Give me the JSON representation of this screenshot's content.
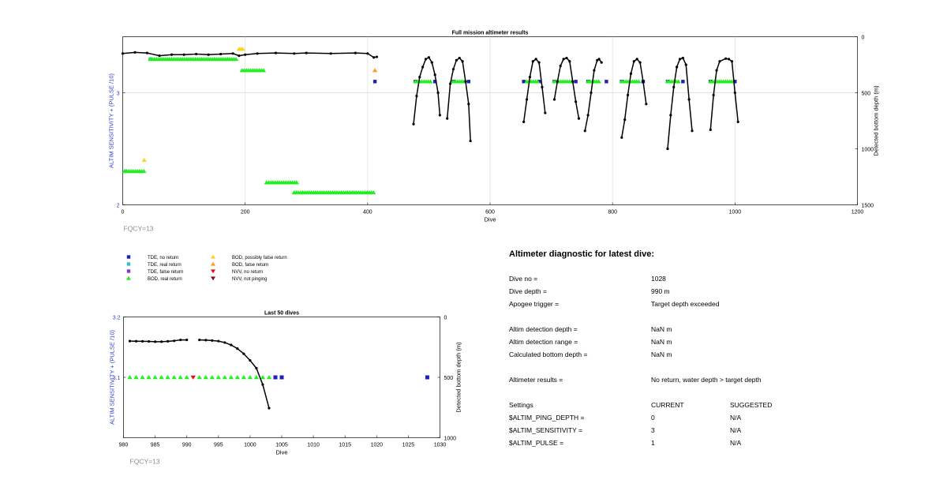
{
  "chart_data": [
    {
      "type": "scatter",
      "title": "Full mission altimeter results",
      "xlabel": "Dive",
      "ylabel_left": "ALTIM SENSITIVITY + (PULSE /10)",
      "ylabel_right": "Detected bottom depth (m)",
      "xlim": [
        0,
        1200
      ],
      "ylim_left": [
        2,
        3.5
      ],
      "ylim_right": [
        1500,
        0
      ],
      "x_ticks": [
        "0",
        "200",
        "400",
        "600",
        "800",
        "1000",
        "1200"
      ],
      "y_ticks_left": [
        "2",
        "3"
      ],
      "y_ticks_right": [
        "0",
        "500",
        "1000",
        "1500"
      ],
      "grid": true,
      "annotation": "FQCY=13",
      "series": [
        {
          "name": "TDE, no return",
          "color": "#1f1fbf",
          "marker": "square",
          "points": [
            [
              412,
              3.1
            ],
            [
              478,
              3.1
            ],
            [
              510,
              3.1
            ],
            [
              540,
              3.1
            ],
            [
              565,
              3.1
            ],
            [
              655,
              3.1
            ],
            [
              680,
              3.1
            ],
            [
              705,
              3.1
            ],
            [
              740,
              3.1
            ],
            [
              760,
              3.1
            ],
            [
              790,
              3.1
            ],
            [
              815,
              3.1
            ],
            [
              850,
              3.1
            ],
            [
              890,
              3.1
            ],
            [
              915,
              3.1
            ],
            [
              960,
              3.1
            ],
            [
              1000,
              3.1
            ]
          ]
        },
        {
          "name": "TDE, real return",
          "color": "#2bc0d8",
          "marker": "square",
          "points": [
            [
              5,
              2.3
            ],
            [
              45,
              3.3
            ]
          ]
        },
        {
          "name": "BOD, real return",
          "color": "#22ee22",
          "marker": "triangle-up",
          "bands": [
            [
              3,
              35,
              2.3
            ],
            [
              45,
              185,
              3.3
            ],
            [
              195,
              230,
              3.2
            ],
            [
              235,
              285,
              2.2
            ],
            [
              280,
              410,
              2.11
            ],
            [
              478,
              505,
              3.1
            ],
            [
              540,
              560,
              3.1
            ],
            [
              660,
              680,
              3.1
            ],
            [
              705,
              735,
              3.1
            ],
            [
              760,
              780,
              3.1
            ],
            [
              815,
              845,
              3.1
            ],
            [
              890,
              910,
              3.1
            ],
            [
              960,
              995,
              3.1
            ]
          ]
        },
        {
          "name": "BOD, possibly false return",
          "color": "#ffd21a",
          "marker": "triangle-up",
          "points": [
            [
              35,
              2.4
            ],
            [
              190,
              3.39
            ],
            [
              193,
              3.39
            ],
            [
              196,
              3.39
            ]
          ]
        },
        {
          "name": "BOD, false return",
          "color": "#ff9a1a",
          "marker": "triangle-up",
          "points": [
            [
              412,
              3.2
            ]
          ]
        },
        {
          "name": "Detected bottom depth",
          "axis": "right",
          "color": "#000000",
          "marker": "dot-line",
          "segments": [
            [
              [
                0,
                150
              ],
              [
                20,
                140
              ],
              [
                40,
                145
              ],
              [
                60,
                170
              ],
              [
                80,
                160
              ],
              [
                100,
                160
              ],
              [
                120,
                155
              ],
              [
                140,
                160
              ],
              [
                160,
                155
              ],
              [
                180,
                150
              ],
              [
                190,
                170
              ],
              [
                200,
                160
              ],
              [
                220,
                150
              ],
              [
                250,
                145
              ],
              [
                280,
                150
              ],
              [
                300,
                145
              ],
              [
                340,
                150
              ],
              [
                380,
                145
              ],
              [
                400,
                150
              ],
              [
                410,
                185
              ],
              [
                415,
                180
              ]
            ],
            [
              [
                475,
                780
              ],
              [
                480,
                530
              ],
              [
                485,
                360
              ],
              [
                490,
                270
              ],
              [
                495,
                200
              ],
              [
                500,
                185
              ],
              [
                505,
                230
              ],
              [
                510,
                340
              ],
              [
                515,
                500
              ],
              [
                518,
                700
              ]
            ],
            [
              [
                530,
                730
              ],
              [
                535,
                420
              ],
              [
                540,
                290
              ],
              [
                545,
                210
              ],
              [
                550,
                190
              ],
              [
                555,
                220
              ],
              [
                560,
                400
              ],
              [
                565,
                600
              ],
              [
                568,
                930
              ]
            ],
            [
              [
                655,
                760
              ],
              [
                660,
                560
              ],
              [
                665,
                360
              ],
              [
                670,
                220
              ],
              [
                675,
                200
              ],
              [
                680,
                230
              ],
              [
                685,
                450
              ],
              [
                690,
                680
              ]
            ],
            [
              [
                705,
                560
              ],
              [
                710,
                400
              ],
              [
                715,
                260
              ],
              [
                720,
                200
              ],
              [
                725,
                190
              ],
              [
                730,
                220
              ],
              [
                735,
                400
              ],
              [
                740,
                580
              ],
              [
                745,
                730
              ]
            ],
            [
              [
                755,
                840
              ],
              [
                760,
                700
              ],
              [
                765,
                500
              ],
              [
                770,
                300
              ],
              [
                775,
                210
              ],
              [
                778,
                200
              ],
              [
                782,
                230
              ]
            ],
            [
              [
                815,
                900
              ],
              [
                820,
                740
              ],
              [
                825,
                520
              ],
              [
                830,
                330
              ],
              [
                835,
                220
              ],
              [
                840,
                200
              ],
              [
                845,
                230
              ],
              [
                850,
                400
              ],
              [
                855,
                600
              ]
            ],
            [
              [
                890,
                1000
              ],
              [
                895,
                700
              ],
              [
                900,
                450
              ],
              [
                905,
                270
              ],
              [
                910,
                200
              ],
              [
                915,
                190
              ],
              [
                920,
                250
              ],
              [
                925,
                560
              ],
              [
                930,
                840
              ]
            ],
            [
              [
                960,
                830
              ],
              [
                965,
                520
              ],
              [
                970,
                300
              ],
              [
                975,
                220
              ],
              [
                985,
                195
              ],
              [
                990,
                200
              ],
              [
                995,
                220
              ],
              [
                1000,
                500
              ],
              [
                1005,
                760
              ]
            ]
          ]
        }
      ]
    },
    {
      "type": "scatter",
      "title": "Last 50 dives",
      "xlabel": "Dive",
      "ylabel_left": "ALTIM SENSITIVITY + (PULSE /10)",
      "ylabel_right": "Detected bottom depth (m)",
      "xlim": [
        980,
        1030
      ],
      "ylim_left": [
        3.0,
        3.2
      ],
      "ylim_right": [
        1000,
        0
      ],
      "x_ticks": [
        "980",
        "985",
        "990",
        "995",
        "1000",
        "1005",
        "1010",
        "1015",
        "1020",
        "1025",
        "1030"
      ],
      "y_ticks_left": [
        "3.1",
        "3.2"
      ],
      "y_ticks_right": [
        "0",
        "500",
        "1000"
      ],
      "grid": false,
      "annotation": "FQCY=13",
      "series": [
        {
          "name": "BOD, real return",
          "color": "#22ee22",
          "marker": "triangle-up",
          "x": [
            981,
            982,
            983,
            984,
            985,
            986,
            987,
            988,
            989,
            990,
            992,
            993,
            994,
            995,
            996,
            997,
            998,
            999,
            1000,
            1001,
            1002,
            1003
          ],
          "y": 3.1
        },
        {
          "name": "NVV, no return",
          "color": "#dd1111",
          "marker": "triangle-down",
          "x": [
            991
          ],
          "y": 3.1
        },
        {
          "name": "TDE, no return",
          "color": "#1f1fbf",
          "marker": "square",
          "x": [
            1004,
            1005,
            1028
          ],
          "y": 3.1
        },
        {
          "name": "Detected bottom depth",
          "axis": "right",
          "color": "#000000",
          "marker": "dot-line",
          "segments": [
            [
              [
                981,
                200
              ],
              [
                982,
                201
              ],
              [
                983,
                202
              ],
              [
                984,
                203
              ],
              [
                985,
                205
              ],
              [
                986,
                205
              ],
              [
                987,
                202
              ],
              [
                988,
                198
              ],
              [
                989,
                190
              ],
              [
                990,
                190
              ]
            ],
            [
              [
                992,
                190
              ],
              [
                993,
                192
              ],
              [
                994,
                195
              ],
              [
                995,
                200
              ],
              [
                996,
                212
              ],
              [
                997,
                232
              ],
              [
                998,
                262
              ],
              [
                999,
                305
              ],
              [
                1000,
                360
              ],
              [
                1001,
                425
              ],
              [
                1002,
                560
              ],
              [
                1003,
                755
              ]
            ]
          ]
        }
      ]
    }
  ],
  "legend": {
    "items": [
      {
        "label": "TDE, no return",
        "color": "#1f1fbf",
        "marker": "square"
      },
      {
        "label": "TDE, real return",
        "color": "#2bc0d8",
        "marker": "square"
      },
      {
        "label": "TDE, false return",
        "color": "#7b3fd0",
        "marker": "square"
      },
      {
        "label": "BOD, real return",
        "color": "#22ee22",
        "marker": "triangle-up"
      },
      {
        "label": "BOD, possibly false return",
        "color": "#ffd21a",
        "marker": "triangle-up"
      },
      {
        "label": "BOD, false return",
        "color": "#ff9a1a",
        "marker": "triangle-up"
      },
      {
        "label": "NVV, no return",
        "color": "#dd1111",
        "marker": "triangle-down"
      },
      {
        "label": "NVV, not pinging",
        "color": "#7a1010",
        "marker": "triangle-down"
      }
    ]
  },
  "diagnostic": {
    "title": "Altimeter diagnostic for latest dive:",
    "rows": [
      {
        "label": "Dive no =",
        "value": "1028"
      },
      {
        "label": "Dive depth =",
        "value": "990 m"
      },
      {
        "label": "Apogee trigger =",
        "value": "Target depth exceeded"
      },
      {
        "label": "Altim detection depth =",
        "value": "NaN m"
      },
      {
        "label": "Altim detection range =",
        "value": "NaN m"
      },
      {
        "label": "Calculated bottom depth =",
        "value": "NaN m"
      },
      {
        "label": "Altimeter results =",
        "value": "No return, water depth > target depth"
      }
    ],
    "settings_header": {
      "label": "Settings",
      "current": "CURRENT",
      "suggested": "SUGGESTED"
    },
    "settings": [
      {
        "label": "$ALTIM_PING_DEPTH =",
        "current": "0",
        "suggested": "N/A"
      },
      {
        "label": "$ALTIM_SENSITIVITY =",
        "current": "3",
        "suggested": "N/A"
      },
      {
        "label": "$ALTIM_PULSE =",
        "current": "1",
        "suggested": "N/A"
      }
    ]
  }
}
